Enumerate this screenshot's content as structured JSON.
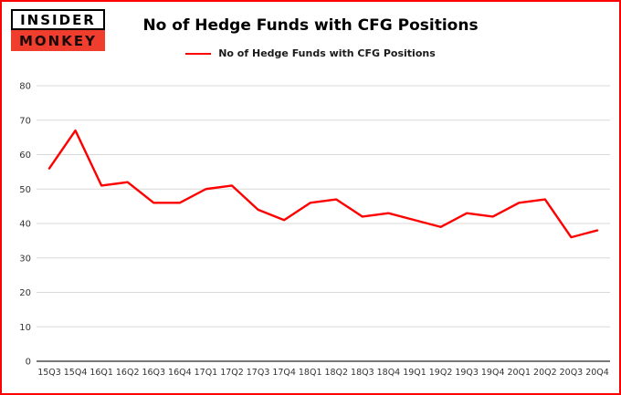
{
  "logo": {
    "line1": "INSIDER",
    "line2": "MONKEY"
  },
  "colors": {
    "frame_border": "#fe0000",
    "series_line": "#ff0000",
    "grid_line": "#d9d9d9",
    "axis_line": "#262626",
    "tick_text": "#333333",
    "logo_bg": "#ef3e2e"
  },
  "chart_data": {
    "type": "line",
    "title": "No of Hedge Funds with CFG Positions",
    "legend": "No of Hedge Funds with CFG Positions",
    "legend_position": "top",
    "grid": true,
    "xlabel": "",
    "ylabel": "",
    "ylim": [
      0,
      80
    ],
    "yticks": [
      0,
      10,
      20,
      30,
      40,
      50,
      60,
      70,
      80
    ],
    "categories": [
      "15Q3",
      "15Q4",
      "16Q1",
      "16Q2",
      "16Q3",
      "16Q4",
      "17Q1",
      "17Q2",
      "17Q3",
      "17Q4",
      "18Q1",
      "18Q2",
      "18Q3",
      "18Q4",
      "19Q1",
      "19Q2",
      "19Q3",
      "19Q4",
      "20Q1",
      "20Q2",
      "20Q3",
      "20Q4"
    ],
    "series": [
      {
        "name": "No of Hedge Funds with CFG Positions",
        "color": "#ff0000",
        "values": [
          56,
          67,
          51,
          52,
          46,
          46,
          50,
          51,
          44,
          41,
          46,
          47,
          42,
          43,
          41,
          39,
          43,
          42,
          46,
          47,
          36,
          38
        ]
      }
    ]
  }
}
